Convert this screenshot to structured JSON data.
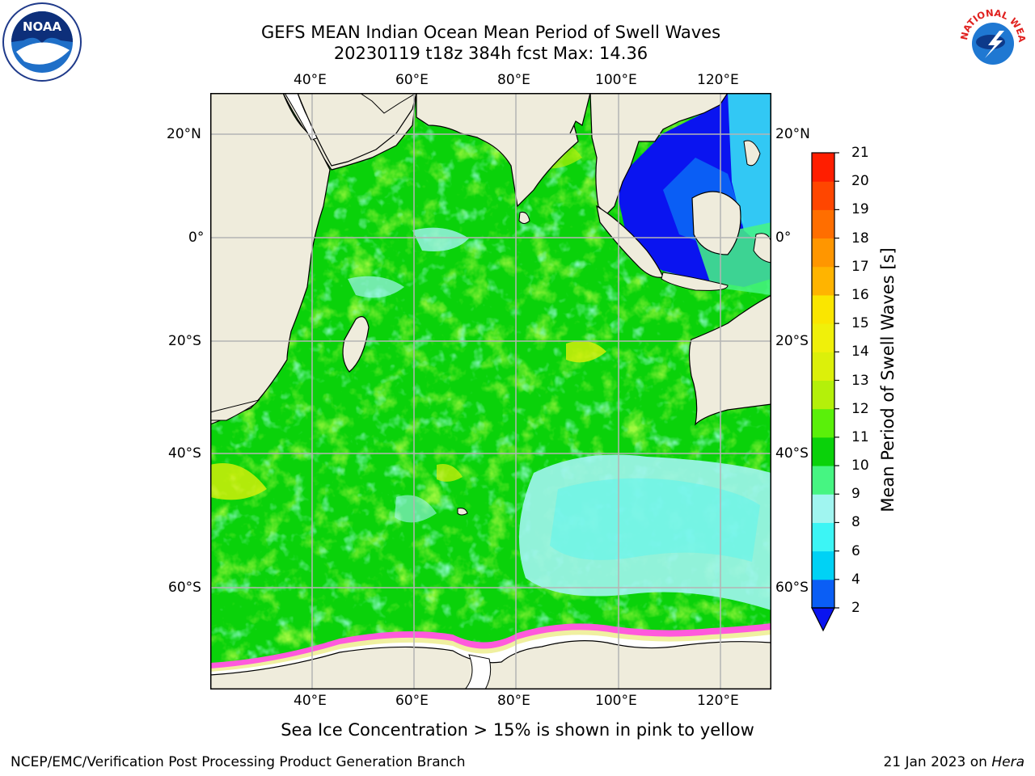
{
  "title": {
    "line1": "GEFS MEAN Indian Ocean Mean Period of Swell Waves",
    "line2": "20230119 t18z 384h fcst   Max: 14.36"
  },
  "map": {
    "lon_labels": [
      "40°E",
      "60°E",
      "80°E",
      "100°E",
      "120°E"
    ],
    "lat_labels": [
      "20°N",
      "0°",
      "20°S",
      "40°S",
      "60°S"
    ],
    "colors": {
      "land": "#efecdc",
      "grid": "#b4b4b4"
    }
  },
  "colorbar": {
    "label": "Mean Period of Swell Waves [s]",
    "ticks": [
      "2",
      "4",
      "6",
      "8",
      "9",
      "10",
      "11",
      "12",
      "13",
      "14",
      "15",
      "16",
      "17",
      "18",
      "19",
      "20",
      "21"
    ],
    "colors": [
      "#0a5ef5",
      "#00d2f5",
      "#3cf5f5",
      "#a0f5f0",
      "#46f582",
      "#0ad20a",
      "#5af00a",
      "#b4f00a",
      "#dcf00a",
      "#f0f00a",
      "#fae600",
      "#ffb400",
      "#ff9600",
      "#ff6e00",
      "#ff4600",
      "#ff1e00"
    ],
    "under_color": "#0a14f0"
  },
  "ice_note": "Sea Ice Concentration > 15% is shown in pink to yellow",
  "footer": {
    "left": "NCEP/EMC/Verification Post Processing Product Generation Branch",
    "right_prefix": "21 Jan 2023 on ",
    "right_italic": "Hera"
  },
  "logos": {
    "noaa_text": "NOAA",
    "nws_text": "NATIONAL WEATHER SERVICE"
  }
}
